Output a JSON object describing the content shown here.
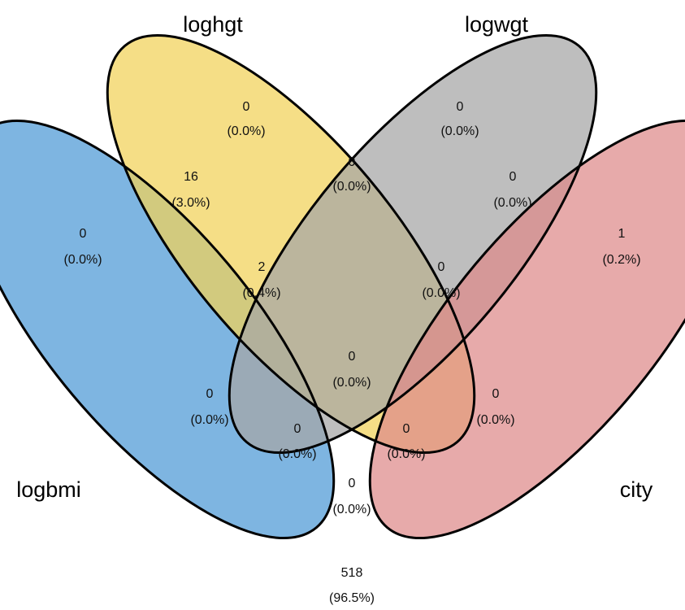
{
  "sets": [
    {
      "name": "logbmi",
      "color": "#4E9AD6"
    },
    {
      "name": "loghgt",
      "color": "#F1D259"
    },
    {
      "name": "logwgt",
      "color": "#A6A6A6"
    },
    {
      "name": "city",
      "color": "#DE8A8B"
    }
  ],
  "regions": [
    {
      "id": "logbmi-only",
      "count": "0",
      "percent": "(0.0%)"
    },
    {
      "id": "loghgt-only",
      "count": "0",
      "percent": "(0.0%)"
    },
    {
      "id": "logwgt-only",
      "count": "0",
      "percent": "(0.0%)"
    },
    {
      "id": "city-only",
      "count": "1",
      "percent": "(0.2%)"
    },
    {
      "id": "logbmi-loghgt",
      "count": "16",
      "percent": "(3.0%)"
    },
    {
      "id": "loghgt-logwgt",
      "count": "0",
      "percent": "(0.0%)"
    },
    {
      "id": "logwgt-city",
      "count": "0",
      "percent": "(0.0%)"
    },
    {
      "id": "logbmi-loghgt-logwgt",
      "count": "2",
      "percent": "(0.4%)"
    },
    {
      "id": "loghgt-logwgt-city",
      "count": "0",
      "percent": "(0.0%)"
    },
    {
      "id": "all-four",
      "count": "0",
      "percent": "(0.0%)"
    },
    {
      "id": "logbmi-logwgt",
      "count": "0",
      "percent": "(0.0%)"
    },
    {
      "id": "loghgt-city",
      "count": "0",
      "percent": "(0.0%)"
    },
    {
      "id": "logbmi-logwgt-city",
      "count": "0",
      "percent": "(0.0%)"
    },
    {
      "id": "logbmi-loghgt-city",
      "count": "0",
      "percent": "(0.0%)"
    },
    {
      "id": "logbmi-city",
      "count": "0",
      "percent": "(0.0%)"
    },
    {
      "id": "none",
      "count": "518",
      "percent": "(96.5%)"
    }
  ]
}
